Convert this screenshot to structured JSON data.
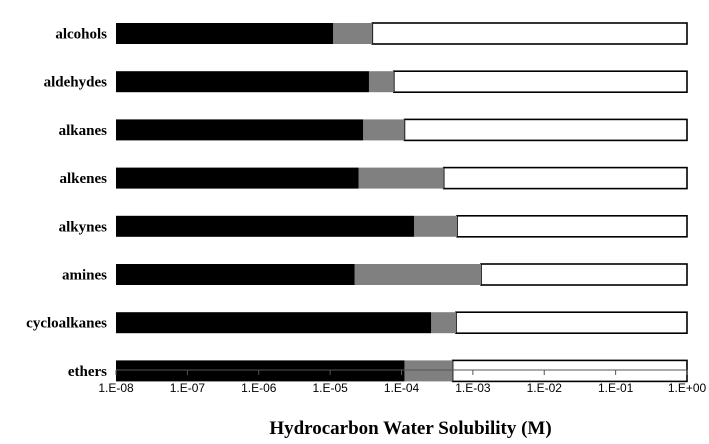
{
  "chart_data": {
    "type": "bar",
    "orientation": "horizontal",
    "stacked": true,
    "xscale": "log",
    "xlim": [
      1e-08,
      1
    ],
    "title": "",
    "xlabel": "Hydrocarbon Water Solubility (M)",
    "ylabel": "",
    "grid": false,
    "legend": "none",
    "categories": [
      "alcohols",
      "aldehydes",
      "alkanes",
      "alkenes",
      "alkynes",
      "amines",
      "cycloalkanes",
      "ethers"
    ],
    "ticks": [
      {
        "value": 1e-08,
        "label": "1.E-08"
      },
      {
        "value": 1e-07,
        "label": "1.E-07"
      },
      {
        "value": 1e-06,
        "label": "1.E-06"
      },
      {
        "value": 1e-05,
        "label": "1.E-05"
      },
      {
        "value": 0.0001,
        "label": "1.E-04"
      },
      {
        "value": 0.001,
        "label": "1.E-03"
      },
      {
        "value": 0.01,
        "label": "1.E-02"
      },
      {
        "value": 0.1,
        "label": "1.E-01"
      },
      {
        "value": 1,
        "label": "1.E+00"
      }
    ],
    "bars": [
      {
        "category": "alcohols",
        "black_end": 1.1e-05,
        "gray_end": 3.9e-05,
        "white_end": 1
      },
      {
        "category": "aldehydes",
        "black_end": 3.5e-05,
        "gray_end": 7.8e-05,
        "white_end": 1
      },
      {
        "category": "alkanes",
        "black_end": 2.9e-05,
        "gray_end": 0.00011,
        "white_end": 1
      },
      {
        "category": "alkenes",
        "black_end": 2.5e-05,
        "gray_end": 0.00039,
        "white_end": 1
      },
      {
        "category": "alkynes",
        "black_end": 0.00015,
        "gray_end": 0.0006,
        "white_end": 1
      },
      {
        "category": "amines",
        "black_end": 2.2e-05,
        "gray_end": 0.0013,
        "white_end": 1
      },
      {
        "category": "cycloalkanes",
        "black_end": 0.00026,
        "gray_end": 0.00058,
        "white_end": 1
      },
      {
        "category": "ethers",
        "black_end": 0.00011,
        "gray_end": 0.00052,
        "white_end": 1
      }
    ],
    "colors": {
      "black": "#000000",
      "gray": "#808080",
      "white": "#ffffff",
      "outline": "#000000"
    }
  }
}
